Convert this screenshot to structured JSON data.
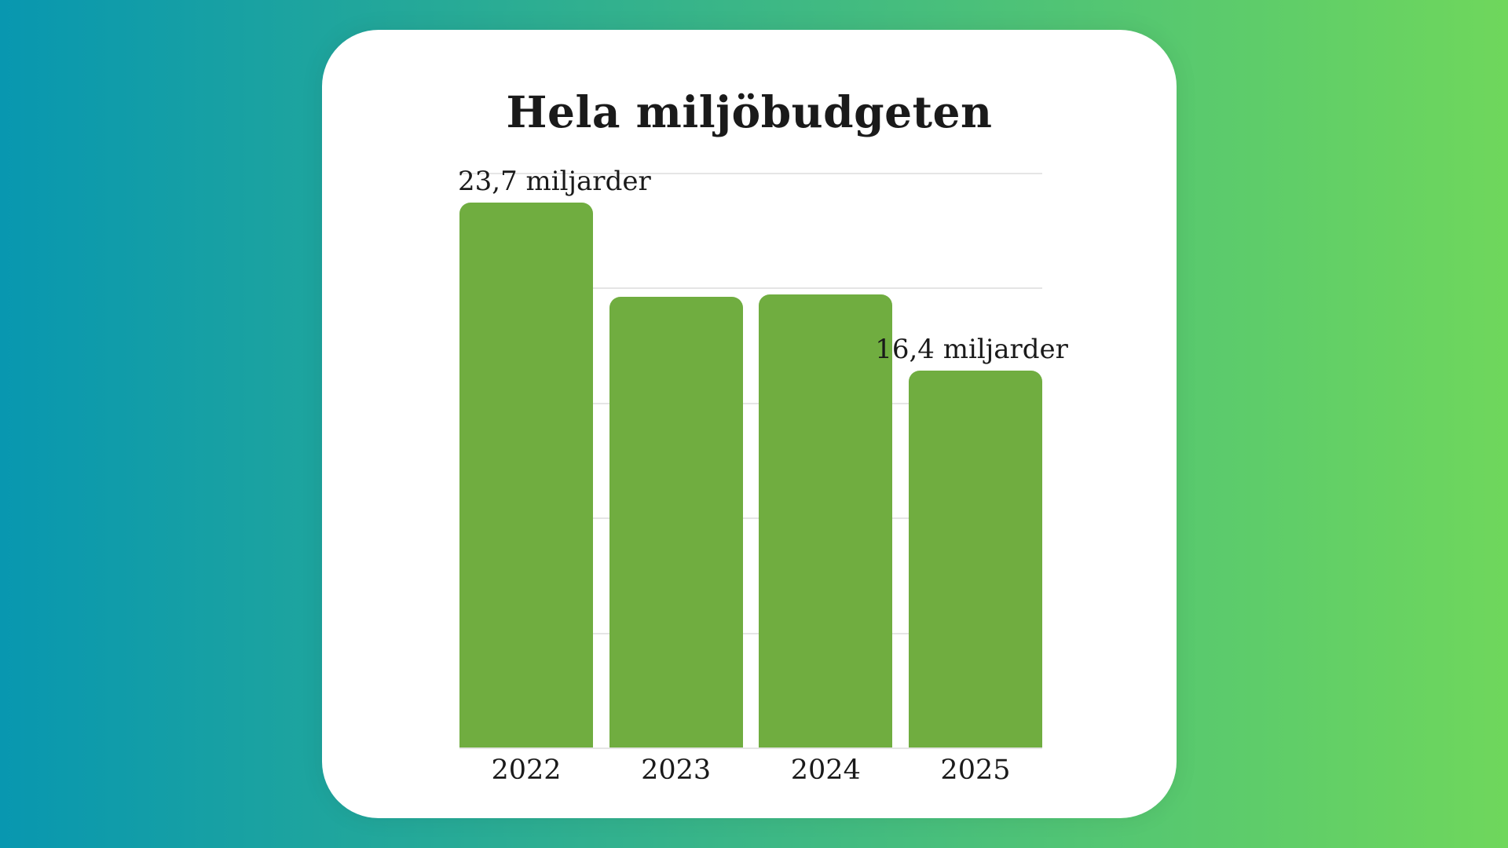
{
  "title": "Hela miljöbudgeten",
  "colors": {
    "background_gradient_left": "#0897B0",
    "background_gradient_right": "#6FD75C",
    "card_background": "#FFFFFF",
    "bar_fill": "#70AD40",
    "gridline": "#E5E5E5",
    "text": "#1A1A1A"
  },
  "chart_data": {
    "type": "bar",
    "title": "Hela miljöbudgeten",
    "categories": [
      "2022",
      "2023",
      "2024",
      "2025"
    ],
    "values": [
      23.7,
      19.6,
      19.7,
      16.4
    ],
    "unit": "miljarder",
    "data_labels": [
      {
        "index": 0,
        "text": "23,7 miljarder",
        "align": "left"
      },
      {
        "index": 3,
        "text": "16,4 miljarder",
        "align": "center"
      }
    ],
    "xlabel": "",
    "ylabel": "",
    "ylim": [
      0,
      25
    ],
    "gridline_step": 5,
    "grid": true,
    "legend": false,
    "y_tick_labels_visible": false
  }
}
